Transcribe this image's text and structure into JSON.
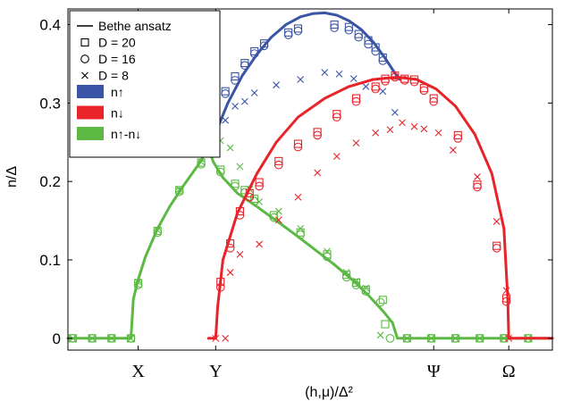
{
  "chart_data": {
    "type": "scatter",
    "xlabel": "(h,μ)/Δ²",
    "ylabel": "n/Δ",
    "ylim": [
      -0.015,
      0.42
    ],
    "xlim": [
      0,
      10
    ],
    "y_ticks": [
      "0",
      "0.1",
      "0.2",
      "0.3",
      "0.4"
    ],
    "y_tick_values": [
      0,
      0.1,
      0.2,
      0.3,
      0.4
    ],
    "x_categories": [
      "X",
      "Y",
      "Ψ",
      "Ω"
    ],
    "x_category_positions": [
      1.45,
      3.05,
      7.55,
      9.1
    ],
    "grid": false,
    "legend_placement": "top-left",
    "legend": {
      "markers": [
        {
          "symbol": "line",
          "label": "Bethe ansatz"
        },
        {
          "symbol": "square",
          "label": "D = 20"
        },
        {
          "symbol": "circle",
          "label": "D = 16"
        },
        {
          "symbol": "cross",
          "label": "D = 8"
        }
      ],
      "colors": [
        {
          "label": "n↑",
          "color": "#3a55a5"
        },
        {
          "label": "n↓",
          "color": "#e8242a"
        },
        {
          "label": "n↑-n↓",
          "color": "#5bb944"
        }
      ]
    },
    "series": [
      {
        "name": "n↑",
        "color": "#3a55a5",
        "bethe": [
          [
            2.9,
            0.243
          ],
          [
            3.05,
            0.262
          ],
          [
            3.3,
            0.3
          ],
          [
            3.6,
            0.335
          ],
          [
            3.9,
            0.362
          ],
          [
            4.2,
            0.384
          ],
          [
            4.5,
            0.4
          ],
          [
            4.8,
            0.41
          ],
          [
            5.05,
            0.414
          ],
          [
            5.3,
            0.415
          ],
          [
            5.55,
            0.412
          ],
          [
            5.8,
            0.405
          ],
          [
            6.05,
            0.394
          ],
          [
            6.3,
            0.378
          ],
          [
            6.55,
            0.357
          ],
          [
            6.75,
            0.338
          ],
          [
            6.85,
            0.33
          ]
        ],
        "D20": [
          [
            3.05,
            0.289
          ],
          [
            3.25,
            0.315
          ],
          [
            3.45,
            0.334
          ],
          [
            3.65,
            0.351
          ],
          [
            3.85,
            0.366
          ],
          [
            4.05,
            0.376
          ],
          [
            4.55,
            0.39
          ],
          [
            4.75,
            0.395
          ],
          [
            5.5,
            0.4
          ],
          [
            5.8,
            0.397
          ],
          [
            6.0,
            0.388
          ],
          [
            6.2,
            0.38
          ],
          [
            6.35,
            0.371
          ],
          [
            6.5,
            0.358
          ]
        ],
        "D16": [
          [
            3.05,
            0.284
          ],
          [
            3.25,
            0.312
          ],
          [
            3.45,
            0.329
          ],
          [
            3.65,
            0.348
          ],
          [
            3.85,
            0.363
          ],
          [
            4.05,
            0.373
          ],
          [
            4.55,
            0.387
          ],
          [
            4.75,
            0.392
          ],
          [
            5.5,
            0.396
          ],
          [
            5.8,
            0.393
          ],
          [
            6.0,
            0.384
          ],
          [
            6.2,
            0.375
          ],
          [
            6.35,
            0.366
          ],
          [
            6.5,
            0.354
          ]
        ],
        "D8": [
          [
            3.05,
            0.262
          ],
          [
            3.25,
            0.278
          ],
          [
            3.45,
            0.296
          ],
          [
            3.65,
            0.302
          ],
          [
            3.85,
            0.313
          ],
          [
            4.3,
            0.323
          ],
          [
            4.8,
            0.33
          ],
          [
            5.3,
            0.339
          ],
          [
            5.6,
            0.337
          ],
          [
            5.9,
            0.331
          ],
          [
            6.15,
            0.321
          ],
          [
            6.5,
            0.315
          ],
          [
            6.75,
            0.288
          ]
        ]
      },
      {
        "name": "n↓",
        "color": "#e8242a",
        "bethe": [
          [
            2.9,
            0.0
          ],
          [
            3.05,
            0.0
          ],
          [
            3.09,
            0.04
          ],
          [
            3.2,
            0.1
          ],
          [
            3.5,
            0.16
          ],
          [
            3.9,
            0.21
          ],
          [
            4.3,
            0.25
          ],
          [
            4.75,
            0.282
          ],
          [
            5.3,
            0.306
          ],
          [
            5.8,
            0.321
          ],
          [
            6.3,
            0.33
          ],
          [
            6.8,
            0.333
          ],
          [
            7.2,
            0.33
          ],
          [
            7.6,
            0.318
          ],
          [
            8.0,
            0.296
          ],
          [
            8.4,
            0.26
          ],
          [
            8.75,
            0.21
          ],
          [
            9.0,
            0.14
          ],
          [
            9.08,
            0.05
          ],
          [
            9.1,
            0.0
          ],
          [
            10.0,
            0.0
          ]
        ],
        "D20": [
          [
            3.15,
            0.072
          ],
          [
            3.35,
            0.121
          ],
          [
            3.55,
            0.162
          ],
          [
            3.75,
            0.185
          ],
          [
            3.95,
            0.199
          ],
          [
            4.35,
            0.226
          ],
          [
            4.75,
            0.248
          ],
          [
            5.15,
            0.263
          ],
          [
            5.55,
            0.286
          ],
          [
            5.95,
            0.306
          ],
          [
            6.35,
            0.321
          ],
          [
            6.55,
            0.331
          ],
          [
            6.75,
            0.335
          ],
          [
            6.95,
            0.331
          ],
          [
            7.15,
            0.33
          ],
          [
            7.35,
            0.319
          ],
          [
            7.55,
            0.306
          ],
          [
            8.05,
            0.259
          ],
          [
            8.45,
            0.196
          ],
          [
            8.85,
            0.118
          ],
          [
            9.05,
            0.051
          ]
        ],
        "D16": [
          [
            3.15,
            0.065
          ],
          [
            3.35,
            0.115
          ],
          [
            3.55,
            0.157
          ],
          [
            3.75,
            0.18
          ],
          [
            3.95,
            0.194
          ],
          [
            4.35,
            0.221
          ],
          [
            4.75,
            0.244
          ],
          [
            5.15,
            0.259
          ],
          [
            5.55,
            0.282
          ],
          [
            5.95,
            0.302
          ],
          [
            6.35,
            0.318
          ],
          [
            6.55,
            0.328
          ],
          [
            6.75,
            0.333
          ],
          [
            6.95,
            0.329
          ],
          [
            7.15,
            0.327
          ],
          [
            7.35,
            0.316
          ],
          [
            7.55,
            0.302
          ],
          [
            8.05,
            0.255
          ],
          [
            8.45,
            0.193
          ],
          [
            8.85,
            0.115
          ],
          [
            9.05,
            0.047
          ]
        ],
        "D8": [
          [
            3.05,
            0.0
          ],
          [
            3.25,
            0.0
          ],
          [
            3.35,
            0.084
          ],
          [
            3.55,
            0.107
          ],
          [
            3.95,
            0.12
          ],
          [
            4.35,
            0.151
          ],
          [
            4.75,
            0.18
          ],
          [
            5.15,
            0.211
          ],
          [
            5.55,
            0.232
          ],
          [
            5.95,
            0.249
          ],
          [
            6.35,
            0.262
          ],
          [
            6.65,
            0.266
          ],
          [
            6.9,
            0.275
          ],
          [
            7.15,
            0.27
          ],
          [
            7.35,
            0.267
          ],
          [
            7.65,
            0.262
          ],
          [
            7.95,
            0.24
          ],
          [
            8.45,
            0.206
          ],
          [
            8.85,
            0.149
          ],
          [
            9.05,
            0.061
          ],
          [
            9.1,
            0.0
          ]
        ]
      },
      {
        "name": "n↑-n↓",
        "color": "#5bb944",
        "bethe": [
          [
            0,
            0.0
          ],
          [
            1.3,
            0.0
          ],
          [
            1.35,
            0.05
          ],
          [
            1.45,
            0.075
          ],
          [
            1.6,
            0.104
          ],
          [
            1.85,
            0.14
          ],
          [
            2.1,
            0.168
          ],
          [
            2.4,
            0.196
          ],
          [
            2.7,
            0.222
          ],
          [
            2.9,
            0.243
          ],
          [
            3.0,
            0.225
          ],
          [
            3.2,
            0.205
          ],
          [
            3.5,
            0.185
          ],
          [
            3.9,
            0.168
          ],
          [
            4.3,
            0.15
          ],
          [
            4.7,
            0.132
          ],
          [
            5.1,
            0.113
          ],
          [
            5.5,
            0.094
          ],
          [
            5.9,
            0.073
          ],
          [
            6.2,
            0.055
          ],
          [
            6.5,
            0.035
          ],
          [
            6.7,
            0.02
          ],
          [
            6.8,
            0.0
          ],
          [
            10.0,
            0.0
          ]
        ],
        "D20": [
          [
            0.1,
            0.0
          ],
          [
            0.5,
            0.0
          ],
          [
            0.9,
            0.0
          ],
          [
            1.3,
            0.0
          ],
          [
            1.45,
            0.07
          ],
          [
            1.85,
            0.137
          ],
          [
            2.3,
            0.189
          ],
          [
            2.75,
            0.224
          ],
          [
            2.95,
            0.24
          ],
          [
            3.15,
            0.215
          ],
          [
            3.45,
            0.197
          ],
          [
            3.65,
            0.189
          ],
          [
            3.85,
            0.178
          ],
          [
            4.25,
            0.157
          ],
          [
            4.8,
            0.135
          ],
          [
            5.35,
            0.107
          ],
          [
            5.75,
            0.081
          ],
          [
            5.95,
            0.071
          ],
          [
            6.15,
            0.062
          ],
          [
            6.5,
            0.049
          ],
          [
            6.55,
            0.018
          ],
          [
            7.0,
            0.0
          ],
          [
            7.5,
            0.0
          ],
          [
            8.0,
            0.0
          ],
          [
            8.5,
            0.0
          ],
          [
            9.0,
            0.0
          ],
          [
            9.5,
            0.0
          ]
        ],
        "D16": [
          [
            0.1,
            0.0
          ],
          [
            0.5,
            0.0
          ],
          [
            0.9,
            0.0
          ],
          [
            1.3,
            0.0
          ],
          [
            1.45,
            0.068
          ],
          [
            1.85,
            0.135
          ],
          [
            2.3,
            0.187
          ],
          [
            2.75,
            0.222
          ],
          [
            2.95,
            0.238
          ],
          [
            3.15,
            0.212
          ],
          [
            3.45,
            0.194
          ],
          [
            3.65,
            0.186
          ],
          [
            3.85,
            0.175
          ],
          [
            4.25,
            0.154
          ],
          [
            4.8,
            0.132
          ],
          [
            5.35,
            0.104
          ],
          [
            5.75,
            0.078
          ],
          [
            5.95,
            0.068
          ],
          [
            6.15,
            0.06
          ],
          [
            6.45,
            0.046
          ],
          [
            6.65,
            0.0
          ],
          [
            7.0,
            0.0
          ],
          [
            7.5,
            0.0
          ],
          [
            8.0,
            0.0
          ],
          [
            8.5,
            0.0
          ],
          [
            9.0,
            0.0
          ],
          [
            9.5,
            0.0
          ]
        ],
        "D8": [
          [
            0.1,
            0.0
          ],
          [
            0.5,
            0.0
          ],
          [
            0.9,
            0.0
          ],
          [
            1.3,
            0.0
          ],
          [
            1.45,
            0.072
          ],
          [
            1.85,
            0.138
          ],
          [
            2.3,
            0.19
          ],
          [
            2.75,
            0.225
          ],
          [
            2.95,
            0.243
          ],
          [
            3.15,
            0.252
          ],
          [
            3.35,
            0.243
          ],
          [
            3.55,
            0.219
          ],
          [
            3.75,
            0.19
          ],
          [
            3.95,
            0.174
          ],
          [
            4.35,
            0.162
          ],
          [
            4.8,
            0.14
          ],
          [
            5.35,
            0.111
          ],
          [
            5.75,
            0.084
          ],
          [
            5.95,
            0.073
          ],
          [
            6.15,
            0.064
          ],
          [
            6.45,
            0.004
          ],
          [
            7.0,
            0.0
          ],
          [
            7.5,
            0.0
          ],
          [
            8.0,
            0.0
          ],
          [
            8.5,
            0.0
          ],
          [
            9.0,
            0.0
          ],
          [
            9.5,
            0.0
          ]
        ]
      }
    ]
  }
}
